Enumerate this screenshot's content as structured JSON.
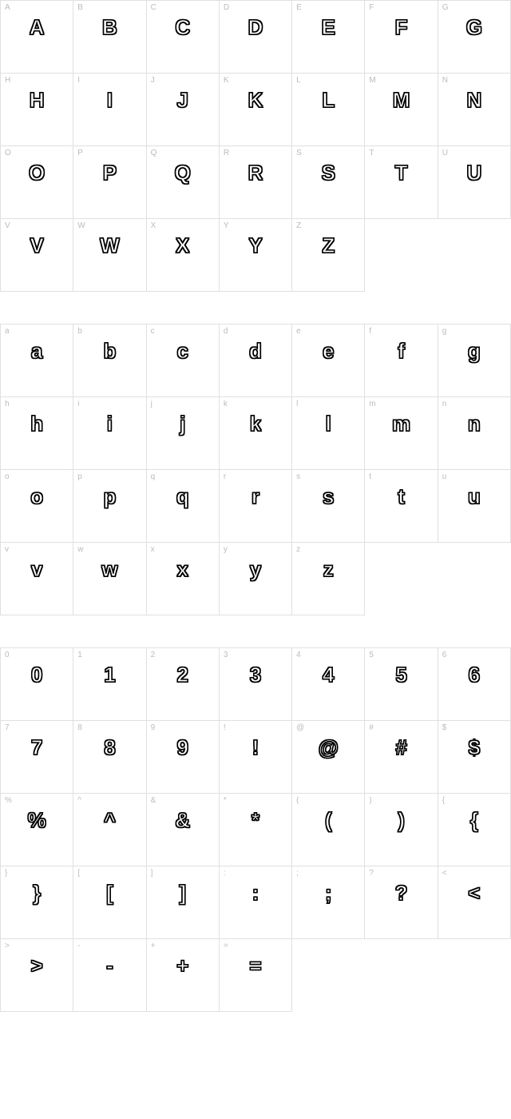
{
  "font_chart": {
    "type": "character-map",
    "cell_border_color": "#e0e0e0",
    "label_color": "#bbbbbb",
    "glyph_color_outline": "#000000",
    "glyph_color_fill": "#ffffff",
    "label_fontsize": 10,
    "glyph_fontsize": 26,
    "columns": 7,
    "sections": {
      "uppercase": {
        "rows": 4,
        "cells": [
          {
            "label": "A",
            "glyph": "A"
          },
          {
            "label": "B",
            "glyph": "B"
          },
          {
            "label": "C",
            "glyph": "C"
          },
          {
            "label": "D",
            "glyph": "D"
          },
          {
            "label": "E",
            "glyph": "E"
          },
          {
            "label": "F",
            "glyph": "F"
          },
          {
            "label": "G",
            "glyph": "G"
          },
          {
            "label": "H",
            "glyph": "H"
          },
          {
            "label": "I",
            "glyph": "I"
          },
          {
            "label": "J",
            "glyph": "J"
          },
          {
            "label": "K",
            "glyph": "K"
          },
          {
            "label": "L",
            "glyph": "L"
          },
          {
            "label": "M",
            "glyph": "M"
          },
          {
            "label": "N",
            "glyph": "N"
          },
          {
            "label": "O",
            "glyph": "O"
          },
          {
            "label": "P",
            "glyph": "P"
          },
          {
            "label": "Q",
            "glyph": "Q"
          },
          {
            "label": "R",
            "glyph": "R"
          },
          {
            "label": "S",
            "glyph": "S"
          },
          {
            "label": "T",
            "glyph": "T"
          },
          {
            "label": "U",
            "glyph": "U"
          },
          {
            "label": "V",
            "glyph": "V"
          },
          {
            "label": "W",
            "glyph": "W"
          },
          {
            "label": "X",
            "glyph": "X"
          },
          {
            "label": "Y",
            "glyph": "Y"
          },
          {
            "label": "Z",
            "glyph": "Z"
          }
        ]
      },
      "lowercase": {
        "rows": 4,
        "cells": [
          {
            "label": "a",
            "glyph": "a"
          },
          {
            "label": "b",
            "glyph": "b"
          },
          {
            "label": "c",
            "glyph": "c"
          },
          {
            "label": "d",
            "glyph": "d"
          },
          {
            "label": "e",
            "glyph": "e"
          },
          {
            "label": "f",
            "glyph": "f"
          },
          {
            "label": "g",
            "glyph": "g"
          },
          {
            "label": "h",
            "glyph": "h"
          },
          {
            "label": "i",
            "glyph": "i"
          },
          {
            "label": "j",
            "glyph": "j"
          },
          {
            "label": "k",
            "glyph": "k"
          },
          {
            "label": "l",
            "glyph": "l"
          },
          {
            "label": "m",
            "glyph": "m"
          },
          {
            "label": "n",
            "glyph": "n"
          },
          {
            "label": "o",
            "glyph": "o"
          },
          {
            "label": "p",
            "glyph": "p"
          },
          {
            "label": "q",
            "glyph": "q"
          },
          {
            "label": "r",
            "glyph": "r"
          },
          {
            "label": "s",
            "glyph": "s"
          },
          {
            "label": "t",
            "glyph": "t"
          },
          {
            "label": "u",
            "glyph": "u"
          },
          {
            "label": "v",
            "glyph": "v"
          },
          {
            "label": "w",
            "glyph": "w"
          },
          {
            "label": "x",
            "glyph": "x"
          },
          {
            "label": "y",
            "glyph": "y"
          },
          {
            "label": "z",
            "glyph": "z"
          }
        ]
      },
      "symbols": {
        "rows": 5,
        "cells": [
          {
            "label": "0",
            "glyph": "0"
          },
          {
            "label": "1",
            "glyph": "1"
          },
          {
            "label": "2",
            "glyph": "2"
          },
          {
            "label": "3",
            "glyph": "3"
          },
          {
            "label": "4",
            "glyph": "4"
          },
          {
            "label": "5",
            "glyph": "5"
          },
          {
            "label": "6",
            "glyph": "6"
          },
          {
            "label": "7",
            "glyph": "7"
          },
          {
            "label": "8",
            "glyph": "8"
          },
          {
            "label": "9",
            "glyph": "9"
          },
          {
            "label": "!",
            "glyph": "!"
          },
          {
            "label": "@",
            "glyph": "@"
          },
          {
            "label": "#",
            "glyph": "#"
          },
          {
            "label": "$",
            "glyph": "$"
          },
          {
            "label": "%",
            "glyph": "%"
          },
          {
            "label": "^",
            "glyph": "^"
          },
          {
            "label": "&",
            "glyph": "&"
          },
          {
            "label": "*",
            "glyph": "*"
          },
          {
            "label": "(",
            "glyph": "("
          },
          {
            "label": ")",
            "glyph": ")"
          },
          {
            "label": "{",
            "glyph": "{"
          },
          {
            "label": "}",
            "glyph": "}"
          },
          {
            "label": "[",
            "glyph": "["
          },
          {
            "label": "]",
            "glyph": "]"
          },
          {
            "label": ":",
            "glyph": ":"
          },
          {
            "label": ";",
            "glyph": ";"
          },
          {
            "label": "?",
            "glyph": "?"
          },
          {
            "label": "<",
            "glyph": "<"
          },
          {
            "label": ">",
            "glyph": ">"
          },
          {
            "label": "-",
            "glyph": "-"
          },
          {
            "label": "+",
            "glyph": "+"
          },
          {
            "label": "=",
            "glyph": "="
          }
        ]
      }
    }
  }
}
